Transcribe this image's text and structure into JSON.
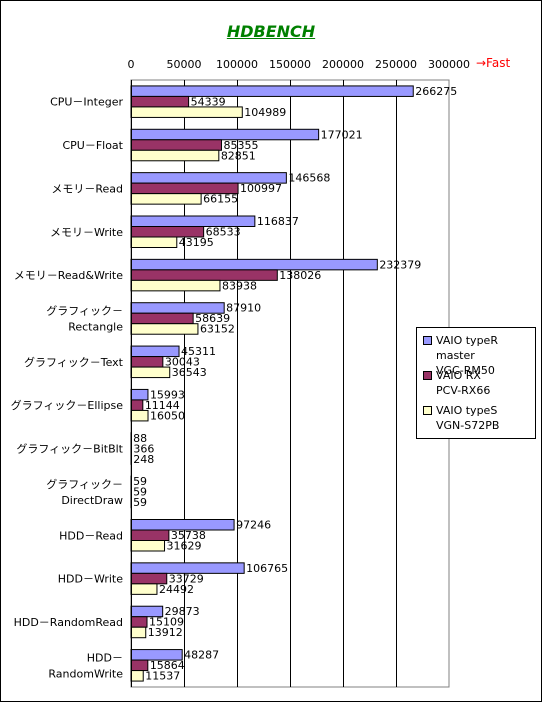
{
  "chart_data": {
    "type": "bar",
    "orientation": "horizontal",
    "title": "HDBENCH",
    "annotation": "→Fast",
    "xlim": [
      0,
      300000
    ],
    "xticks": [
      0,
      50000,
      100000,
      150000,
      200000,
      250000,
      300000
    ],
    "xtick_labels": [
      "0",
      "50000",
      "100000",
      "150000",
      "200000",
      "250000",
      "300000"
    ],
    "grid": true,
    "legend_position": "right",
    "categories": [
      "CPU－Integer",
      "CPU－Float",
      "メモリ－Read",
      "メモリ－Write",
      "メモリ－Read&Write",
      "グラフィック－\nRectangle",
      "グラフィック－Text",
      "グラフィック－Ellipse",
      "グラフィック－BitBlt",
      "グラフィック－\nDirectDraw",
      "HDD－Read",
      "HDD－Write",
      "HDD－RandomRead",
      "HDD－\nRandomWrite"
    ],
    "series": [
      {
        "name": "VAIO typeR master\nVGC-RM50",
        "color": "#9999ff",
        "values": [
          266275,
          177021,
          146568,
          116837,
          232379,
          87910,
          45311,
          15993,
          88,
          59,
          97246,
          106765,
          29873,
          48287
        ]
      },
      {
        "name": "VAIO RX\nPCV-RX66",
        "color": "#993366",
        "values": [
          54339,
          85355,
          100997,
          68533,
          138026,
          58639,
          30043,
          11144,
          366,
          59,
          35738,
          33729,
          15109,
          15864
        ]
      },
      {
        "name": "VAIO typeS\nVGN-S72PB",
        "color": "#ffffcc",
        "values": [
          104989,
          82851,
          66155,
          43195,
          83938,
          63152,
          36543,
          16050,
          248,
          59,
          31629,
          24492,
          13912,
          11537
        ]
      }
    ]
  }
}
